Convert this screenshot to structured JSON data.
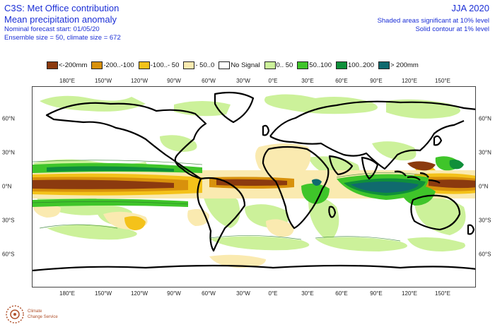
{
  "header": {
    "title": "C3S: Met Office contribution",
    "subtitle": "Mean precipitation anomaly",
    "forecast_start": "Nominal forecast start: 01/05/20",
    "ensemble": "Ensemble size = 50, climate size = 672",
    "season": "JJA 2020",
    "note_shaded": "Shaded areas significant at 10% level",
    "note_contour": "Solid contour at 1% level"
  },
  "legend": [
    {
      "label": "<-200mm",
      "color": "#8b3a0f"
    },
    {
      "label": "-200..-100",
      "color": "#d8910c"
    },
    {
      "label": "-100..- 50",
      "color": "#f4c21a"
    },
    {
      "label": "- 50..0",
      "color": "#faeab0"
    },
    {
      "label": "No Signal",
      "color": "#ffffff"
    },
    {
      "label": "0.. 50",
      "color": "#ccf19a"
    },
    {
      "label": "50..100",
      "color": "#3fc52a"
    },
    {
      "label": "100..200",
      "color": "#0f8f3a"
    },
    {
      "label": "> 200mm",
      "color": "#106a6e"
    }
  ],
  "axes": {
    "lon_labels": [
      "180°E",
      "150°W",
      "120°W",
      "90°W",
      "60°W",
      "30°W",
      "0°E",
      "30°E",
      "60°E",
      "90°E",
      "120°E",
      "150°E"
    ],
    "lat_labels": [
      "60°N",
      "30°N",
      "0°N",
      "30°S",
      "60°S"
    ]
  },
  "logo": {
    "name": "climate-change-service-logo",
    "line1": "Climate",
    "line2": "Change Service"
  }
}
